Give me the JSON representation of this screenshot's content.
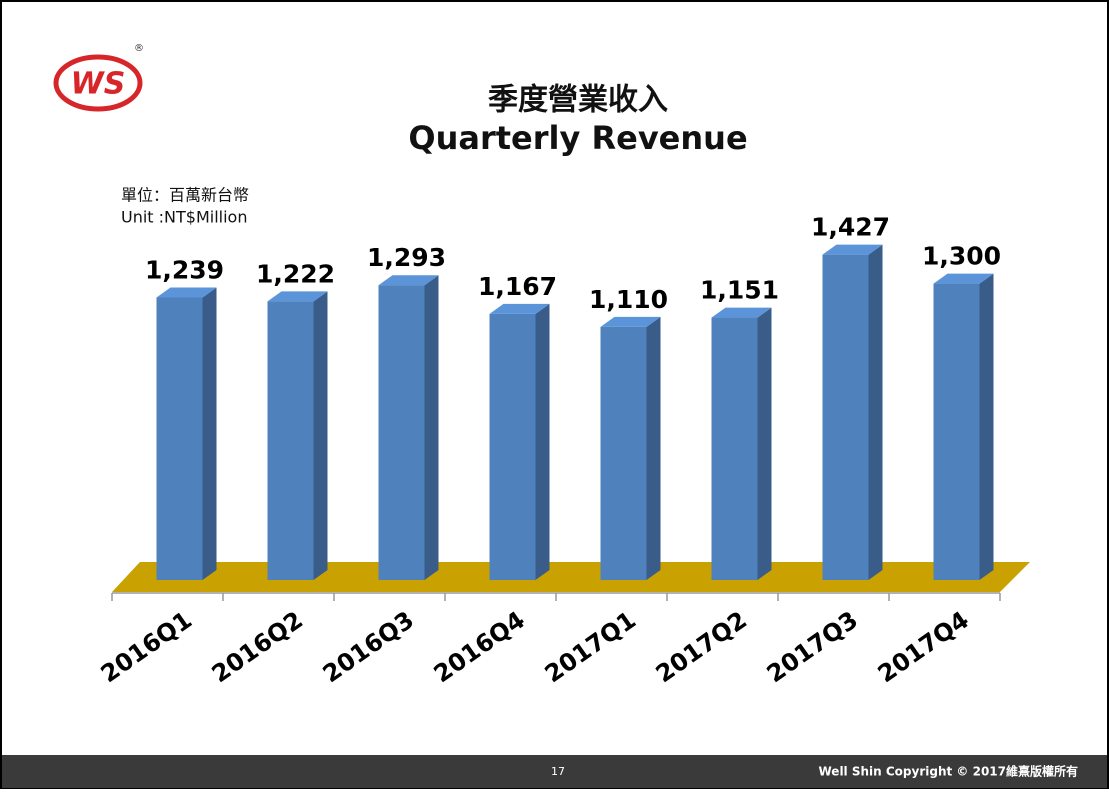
{
  "header": {
    "logo": "WS",
    "registered": "®"
  },
  "chart_data": {
    "type": "bar3d",
    "title": "季度營業收入",
    "subtitle": "Quarterly Revenue",
    "unit_label": "單位：百萬新台幣",
    "unit_label_en": "Unit :NT$Million",
    "categories": [
      "2016Q1",
      "2016Q2",
      "2016Q3",
      "2016Q4",
      "2017Q1",
      "2017Q2",
      "2017Q3",
      "2017Q4"
    ],
    "values": [
      1239,
      1222,
      1293,
      1167,
      1110,
      1151,
      1427,
      1300
    ],
    "value_labels": [
      "1,239",
      "1,222",
      "1,293",
      "1,167",
      "1,110",
      "1,151",
      "1,427",
      "1,300"
    ],
    "color": "#4f81bd",
    "floor_color": "#c9a100",
    "ylim": [
      0,
      1500
    ]
  },
  "footer": {
    "page": "17",
    "copyright": "Well Shin Copyright © 2017維熹版權所有"
  }
}
